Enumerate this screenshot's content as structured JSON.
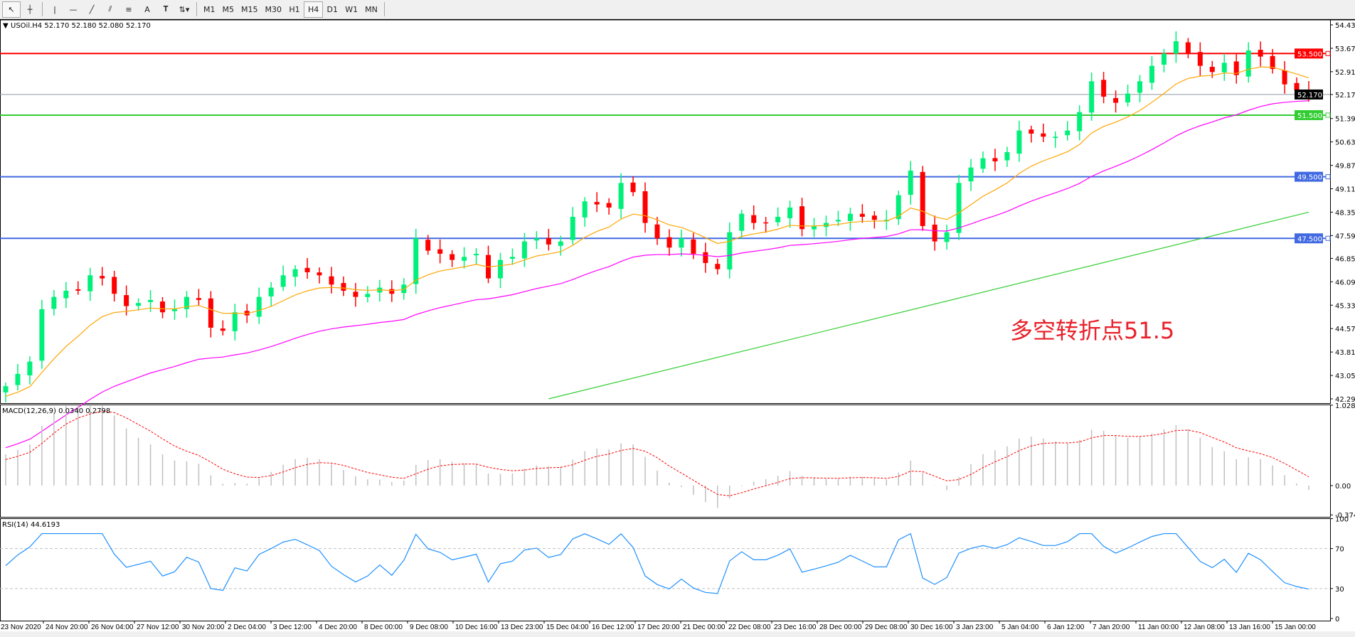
{
  "toolbar": {
    "tools": [
      "cursor-icon",
      "crosshair-icon",
      "vertical-line-icon",
      "horizontal-line-icon",
      "trendline-icon",
      "fibonacci-fan-icon",
      "fibonacci-retracement-icon",
      "text-icon",
      "text-label-icon",
      "arrows-icon"
    ],
    "text_tool": "A",
    "timeframes": [
      "M1",
      "M5",
      "M15",
      "M30",
      "H1",
      "H4",
      "D1",
      "W1",
      "MN"
    ],
    "active_timeframe": "H4"
  },
  "main": {
    "title": "USOil.H4  52.170 52.180 52.080 52.170",
    "annotation": "多空转折点51.5"
  },
  "macd": {
    "title": "MACD(12,26,9) 0.0340 0.2798",
    "ticks": [
      "1.0283",
      "0.00",
      "-0.3748"
    ]
  },
  "rsi": {
    "title": "RSI(14) 44.6193",
    "ticks": [
      "100",
      "70",
      "30",
      "0"
    ]
  },
  "colors": {
    "bull": "#00f07a",
    "bear": "#ff0000",
    "ma_fast": "#ffa500",
    "ma_mid": "#ff00ff",
    "ma_slow": "#32cd32",
    "level_red": "#ff0000",
    "level_green": "#32cd32",
    "level_blue": "#4169e1",
    "macd_hist": "#c0c0c0",
    "macd_signal": "#ff0000",
    "rsi": "#1e90ff"
  },
  "chart_data": {
    "type": "candlestick",
    "symbol": "USOil",
    "timeframe": "H4",
    "price_axis": {
      "min": 42.29,
      "max": 54.43,
      "ticks": [
        "54.430",
        "53.670",
        "52.910",
        "52.170",
        "51.390",
        "50.630",
        "49.870",
        "49.110",
        "48.350",
        "47.590",
        "46.850",
        "46.090",
        "45.330",
        "44.570",
        "43.810",
        "43.050",
        "42.290"
      ]
    },
    "current_price": "52.170",
    "levels": [
      {
        "price": "53.500",
        "color": "red"
      },
      {
        "price": "51.500",
        "color": "green"
      },
      {
        "price": "49.500",
        "color": "blue"
      },
      {
        "price": "47.500",
        "color": "blue"
      }
    ],
    "time_labels": [
      "23 Nov 2020",
      "24 Nov 20:00",
      "26 Nov 04:00",
      "27 Nov 12:00",
      "30 Nov 20:00",
      "2 Dec 04:00",
      "3 Dec 12:00",
      "4 Dec 20:00",
      "8 Dec 00:00",
      "9 Dec 08:00",
      "10 Dec 16:00",
      "13 Dec 23:00",
      "15 Dec 04:00",
      "16 Dec 12:00",
      "17 Dec 20:00",
      "21 Dec 00:00",
      "22 Dec 08:00",
      "23 Dec 16:00",
      "28 Dec 00:00",
      "29 Dec 08:00",
      "30 Dec 16:00",
      "3 Jan 23:00",
      "5 Jan 04:00",
      "6 Jan 12:00",
      "7 Jan 20:00",
      "11 Jan 00:00",
      "12 Jan 08:00",
      "13 Jan 16:00",
      "15 Jan 00:00"
    ],
    "closes": [
      42.7,
      43.1,
      43.5,
      45.2,
      45.6,
      45.8,
      45.8,
      46.3,
      46.2,
      45.7,
      45.3,
      45.4,
      45.5,
      45.1,
      45.2,
      45.6,
      45.5,
      44.6,
      44.5,
      45.1,
      45.0,
      45.6,
      45.9,
      46.3,
      46.5,
      46.4,
      46.3,
      46.0,
      45.8,
      45.6,
      45.7,
      45.9,
      45.7,
      46.0,
      47.5,
      47.1,
      47.0,
      46.8,
      46.9,
      47.0,
      46.2,
      46.8,
      46.9,
      47.4,
      47.5,
      47.3,
      47.4,
      48.2,
      48.7,
      48.6,
      48.5,
      49.3,
      49.0,
      48.0,
      47.5,
      47.2,
      47.5,
      47.0,
      46.7,
      46.5,
      47.7,
      48.3,
      48.0,
      48.0,
      48.2,
      48.5,
      47.8,
      47.9,
      48.0,
      48.1,
      48.3,
      48.2,
      48.1,
      48.1,
      48.9,
      49.7,
      47.9,
      47.4,
      47.7,
      49.3,
      49.8,
      50.1,
      50.0,
      50.3,
      51.0,
      50.9,
      50.8,
      50.8,
      51.0,
      51.6,
      52.6,
      52.1,
      51.9,
      52.2,
      52.6,
      53.1,
      53.5,
      53.9,
      53.5,
      53.1,
      52.9,
      53.2,
      52.8,
      53.6,
      53.4,
      53.0,
      52.5,
      52.3,
      52.17
    ],
    "ma_slow": {
      "start": 42.29,
      "end": 48.35
    }
  }
}
